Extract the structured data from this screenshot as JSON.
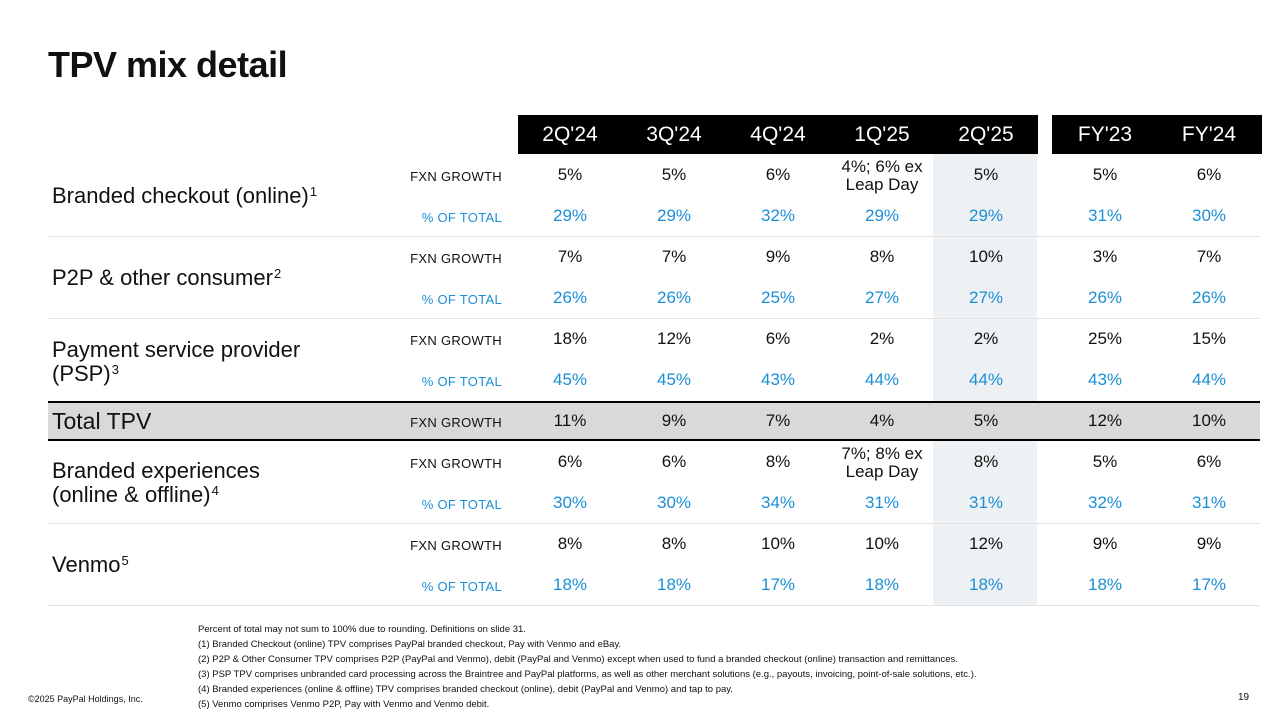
{
  "title": "TPV mix detail",
  "columns": [
    "2Q'24",
    "3Q'24",
    "4Q'24",
    "1Q'25",
    "2Q'25",
    "FY'23",
    "FY'24"
  ],
  "rows": [
    {
      "label": "Branded checkout (online)",
      "sup": "1",
      "fxn_label": "FXN GROWTH",
      "fxn": [
        "5%",
        "5%",
        "6%",
        "4%; 6% ex\nLeap Day",
        "5%",
        "5%",
        "6%"
      ],
      "pct_label": "% OF TOTAL",
      "pct": [
        "29%",
        "29%",
        "32%",
        "29%",
        "29%",
        "31%",
        "30%"
      ]
    },
    {
      "label": "P2P & other consumer",
      "sup": "2",
      "fxn_label": "FXN GROWTH",
      "fxn": [
        "7%",
        "7%",
        "9%",
        "8%",
        "10%",
        "3%",
        "7%"
      ],
      "pct_label": "% OF TOTAL",
      "pct": [
        "26%",
        "26%",
        "25%",
        "27%",
        "27%",
        "26%",
        "26%"
      ]
    },
    {
      "label": "Payment service provider\n(PSP)",
      "sup": "3",
      "fxn_label": "FXN GROWTH",
      "fxn": [
        "18%",
        "12%",
        "6%",
        "2%",
        "2%",
        "25%",
        "15%"
      ],
      "pct_label": "% OF TOTAL",
      "pct": [
        "45%",
        "45%",
        "43%",
        "44%",
        "44%",
        "43%",
        "44%"
      ]
    },
    {
      "label": "Total TPV",
      "sup": "",
      "fxn_label": "FXN GROWTH",
      "fxn": [
        "11%",
        "9%",
        "7%",
        "4%",
        "5%",
        "12%",
        "10%"
      ]
    },
    {
      "label": "Branded experiences\n(online & offline)",
      "sup": "4",
      "fxn_label": "FXN GROWTH",
      "fxn": [
        "6%",
        "6%",
        "8%",
        "7%; 8% ex\nLeap Day",
        "8%",
        "5%",
        "6%"
      ],
      "pct_label": "% OF TOTAL",
      "pct": [
        "30%",
        "30%",
        "34%",
        "31%",
        "31%",
        "32%",
        "31%"
      ]
    },
    {
      "label": "Venmo",
      "sup": "5",
      "fxn_label": "FXN GROWTH",
      "fxn": [
        "8%",
        "8%",
        "10%",
        "10%",
        "12%",
        "9%",
        "9%"
      ],
      "pct_label": "% OF TOTAL",
      "pct": [
        "18%",
        "18%",
        "17%",
        "18%",
        "18%",
        "18%",
        "17%"
      ]
    }
  ],
  "footnotes": [
    "Percent of total may not sum to 100% due to rounding. Definitions on slide 31.",
    "(1) Branded Checkout (online) TPV comprises PayPal branded checkout, Pay with Venmo and eBay.",
    "(2) P2P & Other Consumer TPV comprises P2P (PayPal and Venmo), debit (PayPal and Venmo) except when used to fund a branded checkout (online) transaction and remittances.",
    "(3) PSP TPV comprises unbranded card processing across the Braintree and PayPal platforms, as well as other merchant solutions (e.g., payouts, invoicing, point-of-sale solutions, etc.).",
    "(4) Branded experiences (online & offline) TPV comprises branded checkout (online), debit (PayPal and Venmo) and tap to pay.",
    "(5) Venmo comprises Venmo P2P, Pay with Venmo and Venmo debit."
  ],
  "copyright": "©2025 PayPal Holdings, Inc.",
  "page_number": "19",
  "colors": {
    "accent_blue": "#1a8fd6",
    "header_bg": "#000000",
    "total_band": "#d9d9d9",
    "highlight_col": "#eef1f4"
  }
}
